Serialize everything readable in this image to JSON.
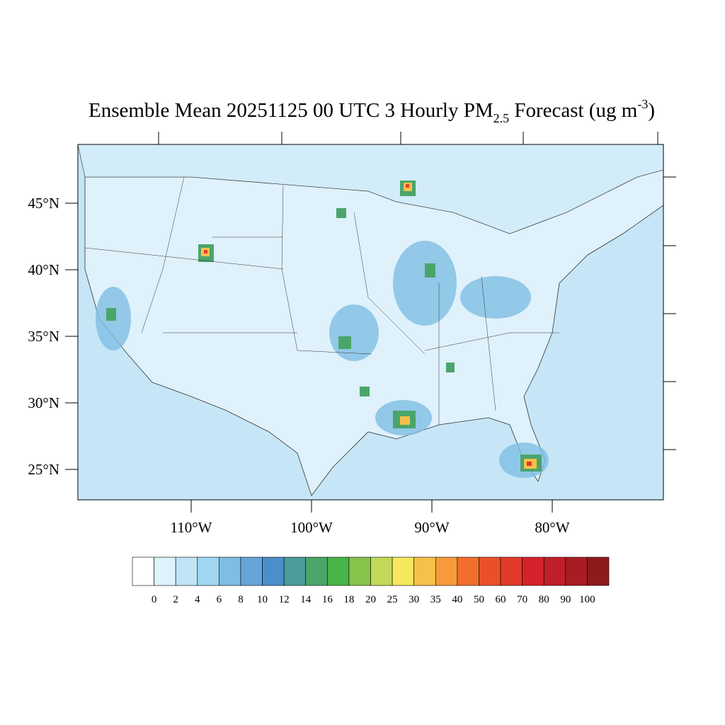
{
  "title": {
    "main": "Ensemble Mean 20251125 00 UTC 3 Hourly PM",
    "subscript": "2.5",
    "middle": " Forecast (ug m",
    "superscript": "-3",
    "end": ")"
  },
  "lat_labels": [
    "45°N",
    "40°N",
    "35°N",
    "30°N",
    "25°N"
  ],
  "lon_labels": [
    "110°W",
    "100°W",
    "90°W",
    "80°W"
  ],
  "colorbar": {
    "levels": [
      0,
      2,
      4,
      6,
      8,
      10,
      12,
      14,
      16,
      18,
      20,
      25,
      30,
      35,
      40,
      50,
      60,
      70,
      80,
      90,
      100
    ],
    "colors": [
      "#ffffff",
      "#dff1fb",
      "#bfe4f6",
      "#9fd6f2",
      "#7fbee4",
      "#66a5d9",
      "#4a8ecb",
      "#4a9c9a",
      "#4aa56b",
      "#48b548",
      "#86c34b",
      "#c3d957",
      "#f6e85e",
      "#f7c04a",
      "#f69a3c",
      "#f26e2d",
      "#e9502a",
      "#e23a28",
      "#d5222a",
      "#bf1f26",
      "#a81c22",
      "#8f1a1c"
    ]
  }
}
